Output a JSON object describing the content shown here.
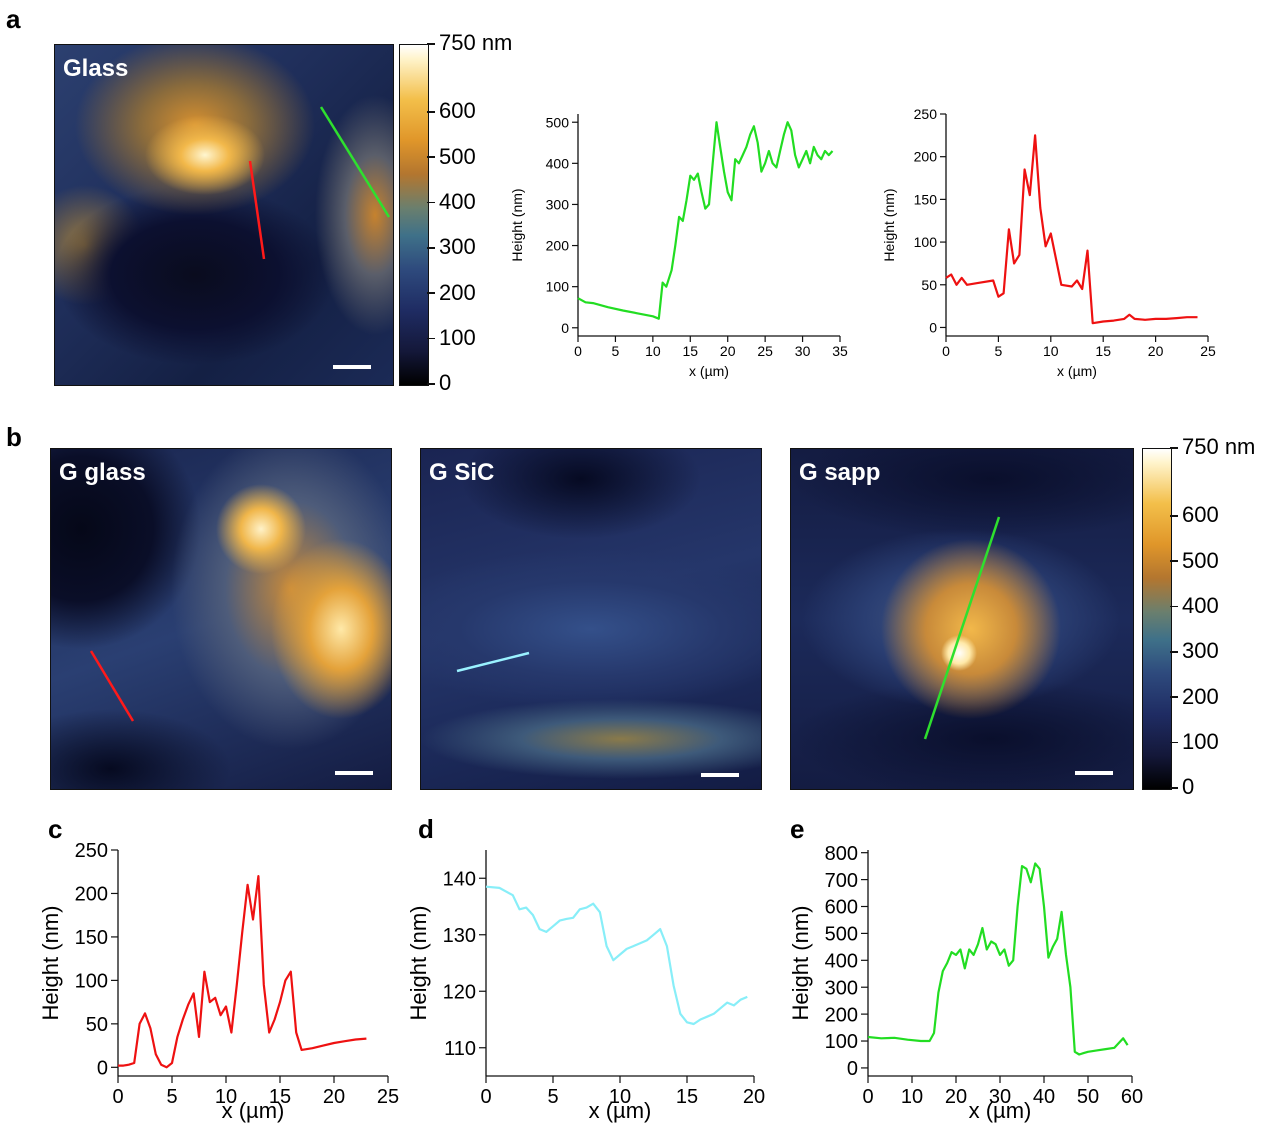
{
  "panels": {
    "a": "a",
    "b": "b",
    "c": "c",
    "d": "d",
    "e": "e"
  },
  "images": {
    "glass": "Glass",
    "g_glass": "G glass",
    "g_sic": "G SiC",
    "g_sapp": "G sapp"
  },
  "colorbar": {
    "labels": [
      "750 nm",
      "600",
      "500",
      "400",
      "300",
      "200",
      "100",
      "0"
    ],
    "values": [
      750,
      600,
      500,
      400,
      300,
      200,
      100,
      0
    ],
    "colormap": [
      "#000000",
      "#1f2c63",
      "#3f7189",
      "#b3762f",
      "#f3bf4a",
      "#ffffff"
    ]
  },
  "chart_data": [
    {
      "id": "a_green",
      "type": "line",
      "color": "#22dd22",
      "xlabel": "x (µm)",
      "ylabel": "Height (nm)",
      "xlim": [
        0,
        35
      ],
      "ylim": [
        -20,
        520
      ],
      "xticks": [
        0,
        5,
        10,
        15,
        20,
        25,
        30,
        35
      ],
      "yticks": [
        0,
        100,
        200,
        300,
        400,
        500
      ],
      "x": [
        0,
        1,
        2,
        4,
        6,
        8,
        10,
        10.8,
        11.3,
        11.8,
        12.5,
        13,
        13.5,
        14,
        14.5,
        15,
        15.5,
        16,
        16.5,
        17,
        17.5,
        18,
        18.5,
        19,
        19.5,
        20,
        20.5,
        21,
        21.5,
        22,
        22.5,
        23,
        23.5,
        24,
        24.5,
        25,
        25.5,
        26,
        26.5,
        27,
        27.5,
        28,
        28.5,
        29,
        29.5,
        30,
        30.5,
        31,
        31.5,
        32,
        32.5,
        33,
        33.5,
        34
      ],
      "y": [
        72,
        62,
        60,
        50,
        42,
        35,
        28,
        22,
        110,
        100,
        140,
        200,
        270,
        260,
        310,
        370,
        360,
        375,
        330,
        290,
        300,
        400,
        500,
        440,
        380,
        330,
        310,
        410,
        400,
        420,
        440,
        470,
        490,
        450,
        380,
        400,
        430,
        400,
        390,
        430,
        470,
        500,
        480,
        420,
        390,
        410,
        430,
        400,
        440,
        420,
        410,
        430,
        420,
        430
      ]
    },
    {
      "id": "a_red",
      "type": "line",
      "color": "#ee1111",
      "xlabel": "x (µm)",
      "ylabel": "Height (nm)",
      "xlim": [
        0,
        25
      ],
      "ylim": [
        -10,
        250
      ],
      "xticks": [
        0,
        5,
        10,
        15,
        20,
        25
      ],
      "yticks": [
        0,
        50,
        100,
        150,
        200,
        250
      ],
      "x": [
        0,
        0.5,
        1,
        1.5,
        2,
        3,
        4.5,
        5,
        5.5,
        6,
        6.5,
        7,
        7.5,
        8,
        8.5,
        9,
        9.5,
        10,
        11,
        12,
        12.5,
        13,
        13.5,
        14,
        15,
        16,
        17,
        17.5,
        18,
        19,
        20,
        21,
        22,
        23,
        24
      ],
      "y": [
        58,
        62,
        50,
        58,
        50,
        52,
        55,
        36,
        40,
        115,
        75,
        85,
        185,
        155,
        225,
        140,
        95,
        110,
        50,
        48,
        55,
        45,
        90,
        5,
        7,
        8,
        10,
        15,
        10,
        9,
        10,
        10,
        11,
        12,
        12
      ]
    },
    {
      "id": "c",
      "type": "line",
      "color": "#ee1111",
      "xlabel": "x (µm)",
      "ylabel": "Height (nm)",
      "xlim": [
        0,
        25
      ],
      "ylim": [
        -10,
        250
      ],
      "xticks": [
        0,
        5,
        10,
        15,
        20,
        25
      ],
      "yticks": [
        0,
        50,
        100,
        150,
        200,
        250
      ],
      "x": [
        0,
        0.5,
        1,
        1.5,
        2,
        2.5,
        3,
        3.5,
        4,
        4.5,
        5,
        5.5,
        6,
        6.5,
        7,
        7.5,
        8,
        8.5,
        9,
        9.5,
        10,
        10.5,
        11,
        11.5,
        12,
        12.5,
        13,
        13.5,
        14,
        14.5,
        15,
        15.5,
        16,
        16.5,
        17,
        18,
        19,
        20,
        21,
        22,
        23
      ],
      "y": [
        2,
        2,
        3,
        5,
        50,
        62,
        45,
        15,
        3,
        0,
        5,
        35,
        55,
        72,
        85,
        35,
        110,
        75,
        80,
        60,
        70,
        40,
        95,
        155,
        210,
        170,
        220,
        95,
        40,
        55,
        75,
        100,
        110,
        40,
        20,
        22,
        25,
        28,
        30,
        32,
        33
      ]
    },
    {
      "id": "d",
      "type": "line",
      "color": "#88eef8",
      "xlabel": "x (µm)",
      "ylabel": "Height (nm)",
      "xlim": [
        0,
        20
      ],
      "ylim": [
        105,
        145
      ],
      "xticks": [
        0,
        5,
        10,
        15,
        20
      ],
      "yticks": [
        110,
        120,
        130,
        140
      ],
      "x": [
        0,
        1,
        2,
        2.5,
        3,
        3.5,
        4,
        4.5,
        5,
        5.5,
        6,
        6.5,
        7,
        7.5,
        8,
        8.5,
        9,
        9.5,
        10,
        10.5,
        11,
        11.5,
        12,
        12.5,
        13,
        13.5,
        14,
        14.5,
        15,
        15.5,
        16,
        16.5,
        17,
        17.5,
        18,
        18.5,
        19,
        19.5
      ],
      "y": [
        138.5,
        138.3,
        137.0,
        134.5,
        134.8,
        133.5,
        131.0,
        130.5,
        131.5,
        132.5,
        132.8,
        133.0,
        134.5,
        134.8,
        135.5,
        134.0,
        128.0,
        125.5,
        126.5,
        127.5,
        128.0,
        128.5,
        129.0,
        130.0,
        131.0,
        128.0,
        121.0,
        116.0,
        114.5,
        114.2,
        115.0,
        115.5,
        116.0,
        117.0,
        118.0,
        117.5,
        118.5,
        119.0
      ]
    },
    {
      "id": "e",
      "type": "line",
      "color": "#22dd22",
      "xlabel": "x (µm)",
      "ylabel": "Height (nm)",
      "xlim": [
        0,
        60
      ],
      "ylim": [
        -30,
        810
      ],
      "xticks": [
        0,
        10,
        20,
        30,
        40,
        50,
        60
      ],
      "yticks": [
        0,
        100,
        200,
        300,
        400,
        500,
        600,
        700,
        800
      ],
      "x": [
        0,
        3,
        6,
        9,
        12,
        14,
        15,
        16,
        17,
        18,
        19,
        20,
        21,
        22,
        23,
        24,
        25,
        26,
        27,
        28,
        29,
        30,
        31,
        32,
        33,
        34,
        35,
        36,
        37,
        38,
        39,
        40,
        41,
        42,
        43,
        44,
        45,
        46,
        47,
        48,
        49,
        50,
        52,
        54,
        56,
        58,
        59
      ],
      "y": [
        115,
        110,
        112,
        105,
        100,
        100,
        130,
        280,
        360,
        390,
        430,
        420,
        440,
        370,
        440,
        420,
        460,
        520,
        440,
        470,
        460,
        420,
        440,
        380,
        400,
        600,
        750,
        740,
        690,
        760,
        740,
        600,
        410,
        450,
        480,
        580,
        420,
        300,
        60,
        50,
        55,
        60,
        65,
        70,
        75,
        110,
        85
      ]
    }
  ]
}
